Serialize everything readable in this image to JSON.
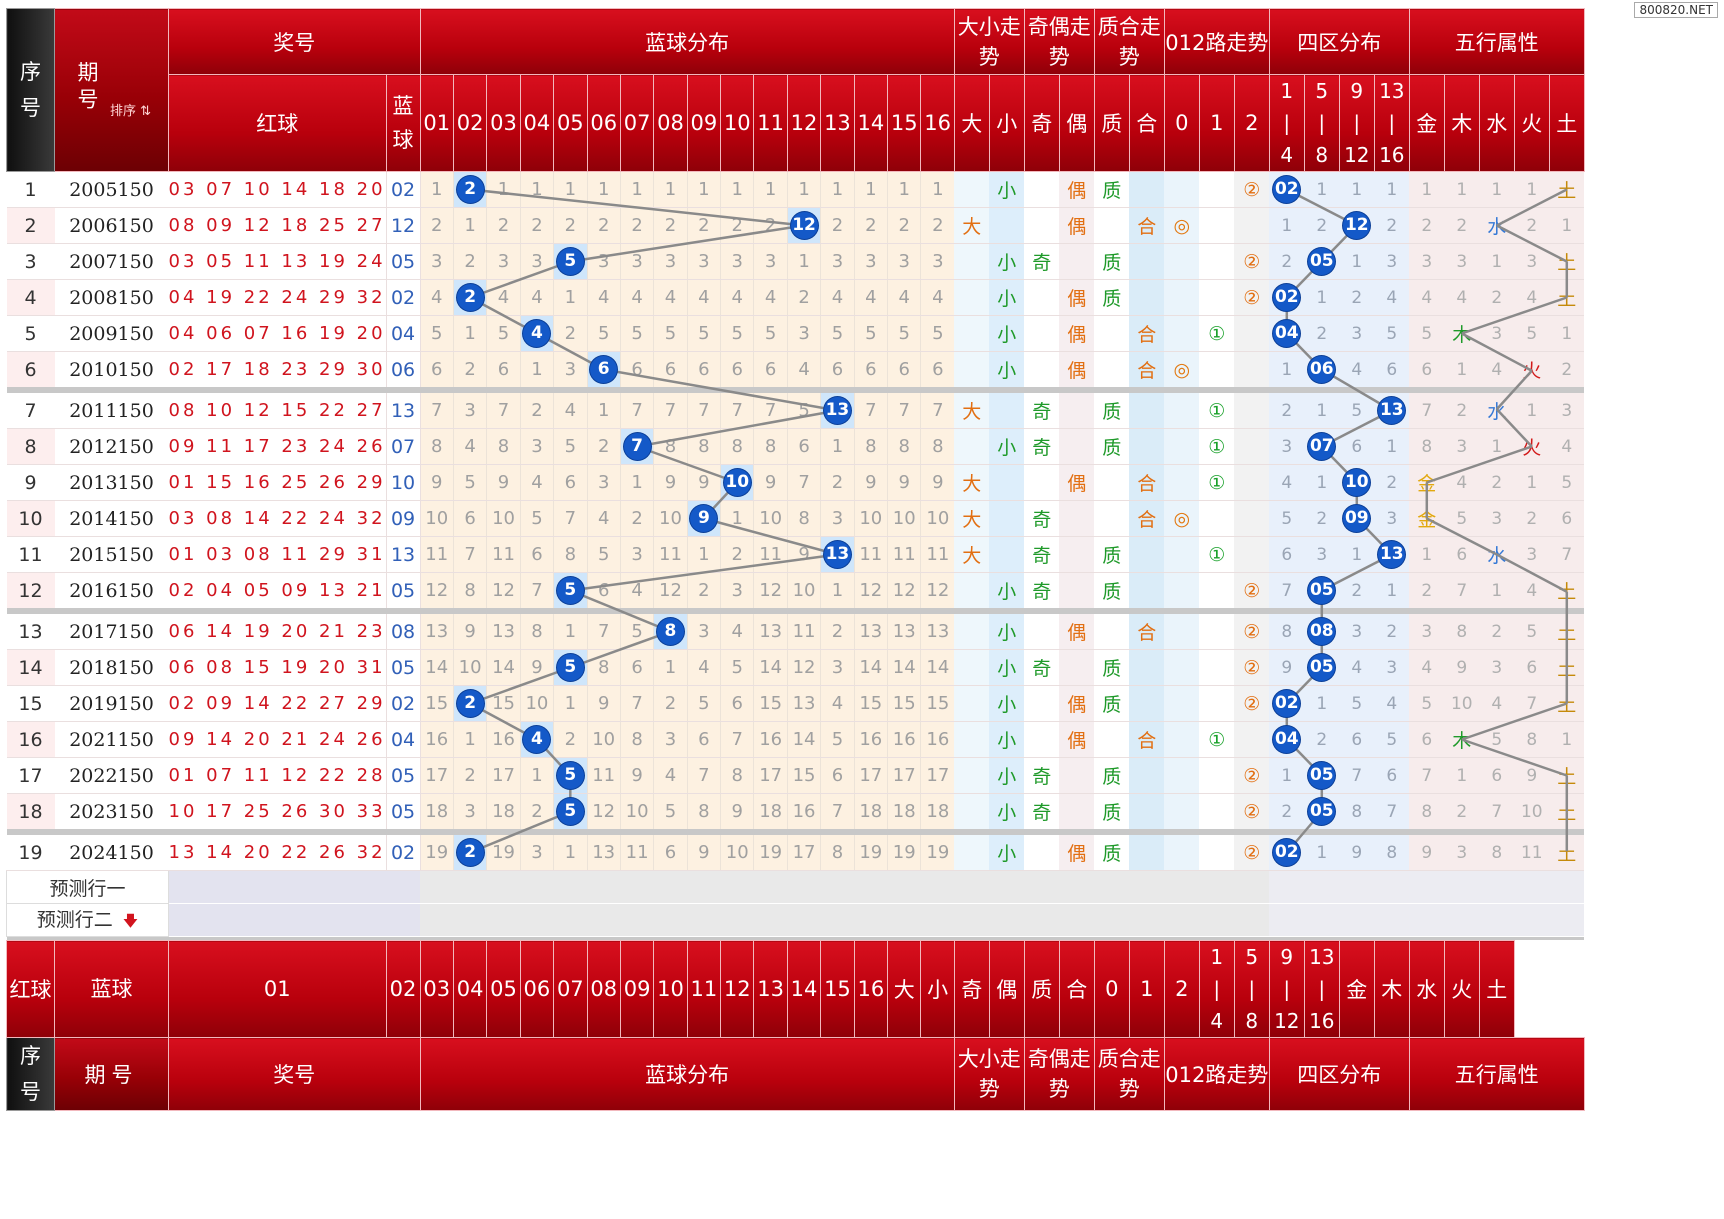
{
  "watermark": "800820.NET",
  "header": {
    "idx": "序号",
    "period": "期号",
    "sort_label": "排序",
    "prize_no": "奖号",
    "red_ball": "红球",
    "blue_ball": "蓝球",
    "blue_dist": "蓝球分布",
    "big_small": "大小走势",
    "odd_even": "奇偶走势",
    "prime_comp": "质合走势",
    "mod3": "012路走势",
    "quadrant": "四区分布",
    "wuxing": "五行属性",
    "blue_cols": [
      "01",
      "02",
      "03",
      "04",
      "05",
      "06",
      "07",
      "08",
      "09",
      "10",
      "11",
      "12",
      "13",
      "14",
      "15",
      "16"
    ],
    "big_small_cols": [
      "大",
      "小"
    ],
    "odd_even_cols": [
      "奇",
      "偶"
    ],
    "prime_cols": [
      "质",
      "合"
    ],
    "mod3_cols": [
      "0",
      "1",
      "2"
    ],
    "quad_cols": [
      [
        "1",
        "|",
        "4"
      ],
      [
        "5",
        "|",
        "8"
      ],
      [
        "9",
        "|",
        "12"
      ],
      [
        "13",
        "|",
        "16"
      ]
    ],
    "wuxing_cols": [
      "金",
      "木",
      "水",
      "火",
      "土"
    ]
  },
  "predict_rows": [
    "预测行一",
    "预测行二"
  ],
  "chart_data": {
    "type": "table",
    "columns": [
      "序号",
      "期号",
      "红球",
      "蓝球",
      "蓝球分布(01-16)",
      "大小",
      "奇偶",
      "质合",
      "012路",
      "四区",
      "五行"
    ],
    "rows": [
      {
        "idx": "1",
        "period": "2005150",
        "red": "03 07 10 14 18 20",
        "blue": "02",
        "blue_num": 2,
        "dist": [
          "1",
          "2",
          "1",
          "1",
          "1",
          "1",
          "1",
          "1",
          "1",
          "1",
          "1",
          "1",
          "1",
          "1",
          "1",
          "1"
        ],
        "bs": [
          "",
          "小"
        ],
        "oe": [
          "",
          "偶"
        ],
        "pc": [
          "质",
          ""
        ],
        "m": [
          "",
          "",
          "②"
        ],
        "q": [
          "02",
          "1",
          "1",
          "1"
        ],
        "w": [
          "1",
          "1",
          "1",
          "1",
          "土"
        ]
      },
      {
        "idx": "2",
        "period": "2006150",
        "red": "08 09 12 18 25 27",
        "blue": "12",
        "blue_num": 12,
        "dist": [
          "2",
          "1",
          "2",
          "2",
          "2",
          "2",
          "2",
          "2",
          "2",
          "2",
          "2",
          "12",
          "2",
          "2",
          "2",
          "2"
        ],
        "bs": [
          "大",
          ""
        ],
        "oe": [
          "",
          "偶"
        ],
        "pc": [
          "",
          "合"
        ],
        "m": [
          "◎",
          "",
          ""
        ],
        "q": [
          "1",
          "2",
          "12",
          "2"
        ],
        "w": [
          "2",
          "2",
          "水",
          "2",
          "1"
        ]
      },
      {
        "idx": "3",
        "period": "2007150",
        "red": "03 05 11 13 19 24",
        "blue": "05",
        "blue_num": 5,
        "dist": [
          "3",
          "2",
          "3",
          "3",
          "5",
          "3",
          "3",
          "3",
          "3",
          "3",
          "3",
          "1",
          "3",
          "3",
          "3",
          "3"
        ],
        "bs": [
          "",
          "小"
        ],
        "oe": [
          "奇",
          ""
        ],
        "pc": [
          "质",
          ""
        ],
        "m": [
          "",
          "",
          "②"
        ],
        "q": [
          "2",
          "05",
          "1",
          "3"
        ],
        "w": [
          "3",
          "3",
          "1",
          "3",
          "土"
        ]
      },
      {
        "idx": "4",
        "period": "2008150",
        "red": "04 19 22 24 29 32",
        "blue": "02",
        "blue_num": 2,
        "dist": [
          "4",
          "2",
          "4",
          "4",
          "1",
          "4",
          "4",
          "4",
          "4",
          "4",
          "4",
          "2",
          "4",
          "4",
          "4",
          "4"
        ],
        "bs": [
          "",
          "小"
        ],
        "oe": [
          "",
          "偶"
        ],
        "pc": [
          "质",
          ""
        ],
        "m": [
          "",
          "",
          "②"
        ],
        "q": [
          "02",
          "1",
          "2",
          "4"
        ],
        "w": [
          "4",
          "4",
          "2",
          "4",
          "土"
        ]
      },
      {
        "idx": "5",
        "period": "2009150",
        "red": "04 06 07 16 19 20",
        "blue": "04",
        "blue_num": 4,
        "dist": [
          "5",
          "1",
          "5",
          "4",
          "2",
          "5",
          "5",
          "5",
          "5",
          "5",
          "5",
          "3",
          "5",
          "5",
          "5",
          "5"
        ],
        "bs": [
          "",
          "小"
        ],
        "oe": [
          "",
          "偶"
        ],
        "pc": [
          "",
          "合"
        ],
        "m": [
          "",
          "①",
          ""
        ],
        "q": [
          "04",
          "2",
          "3",
          "5"
        ],
        "w": [
          "5",
          "木",
          "3",
          "5",
          "1"
        ]
      },
      {
        "idx": "6",
        "period": "2010150",
        "red": "02 17 18 23 29 30",
        "blue": "06",
        "blue_num": 6,
        "dist": [
          "6",
          "2",
          "6",
          "1",
          "3",
          "6",
          "6",
          "6",
          "6",
          "6",
          "6",
          "4",
          "6",
          "6",
          "6",
          "6"
        ],
        "bs": [
          "",
          "小"
        ],
        "oe": [
          "",
          "偶"
        ],
        "pc": [
          "",
          "合"
        ],
        "m": [
          "◎",
          "",
          ""
        ],
        "q": [
          "1",
          "06",
          "4",
          "6"
        ],
        "w": [
          "6",
          "1",
          "4",
          "火",
          "2"
        ]
      },
      {
        "idx": "7",
        "period": "2011150",
        "red": "08 10 12 15 22 27",
        "blue": "13",
        "blue_num": 13,
        "dist": [
          "7",
          "3",
          "7",
          "2",
          "4",
          "1",
          "7",
          "7",
          "7",
          "7",
          "7",
          "5",
          "13",
          "7",
          "7",
          "7"
        ],
        "bs": [
          "大",
          ""
        ],
        "oe": [
          "奇",
          ""
        ],
        "pc": [
          "质",
          ""
        ],
        "m": [
          "",
          "①",
          ""
        ],
        "q": [
          "2",
          "1",
          "5",
          "13"
        ],
        "w": [
          "7",
          "2",
          "水",
          "1",
          "3"
        ]
      },
      {
        "idx": "8",
        "period": "2012150",
        "red": "09 11 17 23 24 26",
        "blue": "07",
        "blue_num": 7,
        "dist": [
          "8",
          "4",
          "8",
          "3",
          "5",
          "2",
          "7",
          "8",
          "8",
          "8",
          "8",
          "6",
          "1",
          "8",
          "8",
          "8"
        ],
        "bs": [
          "",
          "小"
        ],
        "oe": [
          "奇",
          ""
        ],
        "pc": [
          "质",
          ""
        ],
        "m": [
          "",
          "①",
          ""
        ],
        "q": [
          "3",
          "07",
          "6",
          "1"
        ],
        "w": [
          "8",
          "3",
          "1",
          "火",
          "4"
        ]
      },
      {
        "idx": "9",
        "period": "2013150",
        "red": "01 15 16 25 26 29",
        "blue": "10",
        "blue_num": 10,
        "dist": [
          "9",
          "5",
          "9",
          "4",
          "6",
          "3",
          "1",
          "9",
          "9",
          "10",
          "9",
          "7",
          "2",
          "9",
          "9",
          "9"
        ],
        "bs": [
          "大",
          ""
        ],
        "oe": [
          "",
          "偶"
        ],
        "pc": [
          "",
          "合"
        ],
        "m": [
          "",
          "①",
          ""
        ],
        "q": [
          "4",
          "1",
          "10",
          "2"
        ],
        "w": [
          "金",
          "4",
          "2",
          "1",
          "5"
        ]
      },
      {
        "idx": "10",
        "period": "2014150",
        "red": "03 08 14 22 24 32",
        "blue": "09",
        "blue_num": 9,
        "dist": [
          "10",
          "6",
          "10",
          "5",
          "7",
          "4",
          "2",
          "10",
          "9",
          "1",
          "10",
          "8",
          "3",
          "10",
          "10",
          "10"
        ],
        "bs": [
          "大",
          ""
        ],
        "oe": [
          "奇",
          ""
        ],
        "pc": [
          "",
          "合"
        ],
        "m": [
          "◎",
          "",
          ""
        ],
        "q": [
          "5",
          "2",
          "09",
          "3"
        ],
        "w": [
          "金",
          "5",
          "3",
          "2",
          "6"
        ]
      },
      {
        "idx": "11",
        "period": "2015150",
        "red": "01 03 08 11 29 31",
        "blue": "13",
        "blue_num": 13,
        "dist": [
          "11",
          "7",
          "11",
          "6",
          "8",
          "5",
          "3",
          "11",
          "1",
          "2",
          "11",
          "9",
          "13",
          "11",
          "11",
          "11"
        ],
        "bs": [
          "大",
          ""
        ],
        "oe": [
          "奇",
          ""
        ],
        "pc": [
          "质",
          ""
        ],
        "m": [
          "",
          "①",
          ""
        ],
        "q": [
          "6",
          "3",
          "1",
          "13"
        ],
        "w": [
          "1",
          "6",
          "水",
          "3",
          "7"
        ]
      },
      {
        "idx": "12",
        "period": "2016150",
        "red": "02 04 05 09 13 21",
        "blue": "05",
        "blue_num": 5,
        "dist": [
          "12",
          "8",
          "12",
          "7",
          "5",
          "6",
          "4",
          "12",
          "2",
          "3",
          "12",
          "10",
          "1",
          "12",
          "12",
          "12"
        ],
        "bs": [
          "",
          "小"
        ],
        "oe": [
          "奇",
          ""
        ],
        "pc": [
          "质",
          ""
        ],
        "m": [
          "",
          "",
          "②"
        ],
        "q": [
          "7",
          "05",
          "2",
          "1"
        ],
        "w": [
          "2",
          "7",
          "1",
          "4",
          "土"
        ]
      },
      {
        "idx": "13",
        "period": "2017150",
        "red": "06 14 19 20 21 23",
        "blue": "08",
        "blue_num": 8,
        "dist": [
          "13",
          "9",
          "13",
          "8",
          "1",
          "7",
          "5",
          "8",
          "3",
          "4",
          "13",
          "11",
          "2",
          "13",
          "13",
          "13"
        ],
        "bs": [
          "",
          "小"
        ],
        "oe": [
          "",
          "偶"
        ],
        "pc": [
          "",
          "合"
        ],
        "m": [
          "",
          "",
          "②"
        ],
        "q": [
          "8",
          "08",
          "3",
          "2"
        ],
        "w": [
          "3",
          "8",
          "2",
          "5",
          "土"
        ]
      },
      {
        "idx": "14",
        "period": "2018150",
        "red": "06 08 15 19 20 31",
        "blue": "05",
        "blue_num": 5,
        "dist": [
          "14",
          "10",
          "14",
          "9",
          "5",
          "8",
          "6",
          "1",
          "4",
          "5",
          "14",
          "12",
          "3",
          "14",
          "14",
          "14"
        ],
        "bs": [
          "",
          "小"
        ],
        "oe": [
          "奇",
          ""
        ],
        "pc": [
          "质",
          ""
        ],
        "m": [
          "",
          "",
          "②"
        ],
        "q": [
          "9",
          "05",
          "4",
          "3"
        ],
        "w": [
          "4",
          "9",
          "3",
          "6",
          "土"
        ]
      },
      {
        "idx": "15",
        "period": "2019150",
        "red": "02 09 14 22 27 29",
        "blue": "02",
        "blue_num": 2,
        "dist": [
          "15",
          "2",
          "15",
          "10",
          "1",
          "9",
          "7",
          "2",
          "5",
          "6",
          "15",
          "13",
          "4",
          "15",
          "15",
          "15"
        ],
        "bs": [
          "",
          "小"
        ],
        "oe": [
          "",
          "偶"
        ],
        "pc": [
          "质",
          ""
        ],
        "m": [
          "",
          "",
          "②"
        ],
        "q": [
          "02",
          "1",
          "5",
          "4"
        ],
        "w": [
          "5",
          "10",
          "4",
          "7",
          "土"
        ]
      },
      {
        "idx": "16",
        "period": "2021150",
        "red": "09 14 20 21 24 26",
        "blue": "04",
        "blue_num": 4,
        "dist": [
          "16",
          "1",
          "16",
          "4",
          "2",
          "10",
          "8",
          "3",
          "6",
          "7",
          "16",
          "14",
          "5",
          "16",
          "16",
          "16"
        ],
        "bs": [
          "",
          "小"
        ],
        "oe": [
          "",
          "偶"
        ],
        "pc": [
          "",
          "合"
        ],
        "m": [
          "",
          "①",
          ""
        ],
        "q": [
          "04",
          "2",
          "6",
          "5"
        ],
        "w": [
          "6",
          "木",
          "5",
          "8",
          "1"
        ]
      },
      {
        "idx": "17",
        "period": "2022150",
        "red": "01 07 11 12 22 28",
        "blue": "05",
        "blue_num": 5,
        "dist": [
          "17",
          "2",
          "17",
          "1",
          "5",
          "11",
          "9",
          "4",
          "7",
          "8",
          "17",
          "15",
          "6",
          "17",
          "17",
          "17"
        ],
        "bs": [
          "",
          "小"
        ],
        "oe": [
          "奇",
          ""
        ],
        "pc": [
          "质",
          ""
        ],
        "m": [
          "",
          "",
          "②"
        ],
        "q": [
          "1",
          "05",
          "7",
          "6"
        ],
        "w": [
          "7",
          "1",
          "6",
          "9",
          "土"
        ]
      },
      {
        "idx": "18",
        "period": "2023150",
        "red": "10 17 25 26 30 33",
        "blue": "05",
        "blue_num": 5,
        "dist": [
          "18",
          "3",
          "18",
          "2",
          "5",
          "12",
          "10",
          "5",
          "8",
          "9",
          "18",
          "16",
          "7",
          "18",
          "18",
          "18"
        ],
        "bs": [
          "",
          "小"
        ],
        "oe": [
          "奇",
          ""
        ],
        "pc": [
          "质",
          ""
        ],
        "m": [
          "",
          "",
          "②"
        ],
        "q": [
          "2",
          "05",
          "8",
          "7"
        ],
        "w": [
          "8",
          "2",
          "7",
          "10",
          "土"
        ]
      },
      {
        "idx": "19",
        "period": "2024150",
        "red": "13 14 20 22 26 32",
        "blue": "02",
        "blue_num": 2,
        "dist": [
          "19",
          "2",
          "19",
          "3",
          "1",
          "13",
          "11",
          "6",
          "9",
          "10",
          "19",
          "17",
          "8",
          "19",
          "19",
          "19"
        ],
        "bs": [
          "",
          "小"
        ],
        "oe": [
          "",
          "偶"
        ],
        "pc": [
          "质",
          ""
        ],
        "m": [
          "",
          "",
          "②"
        ],
        "q": [
          "02",
          "1",
          "9",
          "8"
        ],
        "w": [
          "9",
          "3",
          "8",
          "11",
          "土"
        ]
      }
    ]
  }
}
